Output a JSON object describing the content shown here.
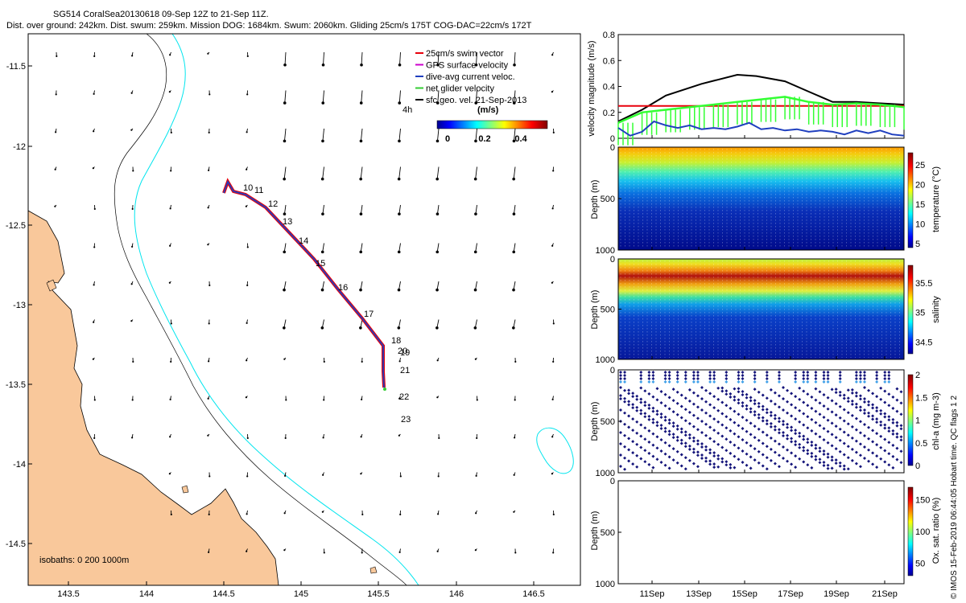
{
  "header": {
    "line1": "SG514 CoralSea20130618 09-Sep 12Z to 21-Sep 11Z.",
    "line2": "Dist. over ground: 242km. Dist. swum: 259km. Mission DOG: 1684km. Swum: 2060km. Gliding 25cm/s 175T COG-DAC=22cm/s 172T"
  },
  "colors": {
    "land": "#f9c89b",
    "isobath_200": "#000000",
    "isobath_1000": "#00e5ee",
    "track_red": "#e8000b",
    "track_blue": "#1f3fbf",
    "vel_black": "#000000",
    "vel_red": "#e8000b",
    "vel_green": "#33ff33",
    "vel_blue": "#1f3fbf"
  },
  "map": {
    "legend": [
      {
        "label": "25cm/s swim vector",
        "color": "#e8000b"
      },
      {
        "label": "GPS surface velocity",
        "color": "#cc00cc"
      },
      {
        "label": "dive-avg current veloc.",
        "color": "#1f3fbf"
      },
      {
        "label": "net glider velocity",
        "color": "#33cc33"
      },
      {
        "label": "sfc geo. vel. 21-Sep-2013",
        "color": "#000000"
      }
    ],
    "time_label": "4h",
    "colorbar": {
      "title": "(m/s)",
      "ticks": [
        "0",
        "0.2",
        "0.4"
      ]
    },
    "isobaths_note": "isobaths: 0   200  1000m",
    "lon_ticks": [
      "143.5",
      "144",
      "144.5",
      "145",
      "145.5",
      "146",
      "146.5"
    ],
    "lat_ticks": [
      "-11.5",
      "-12",
      "-12.5",
      "-13",
      "-13.5",
      "-14",
      "-14.5"
    ],
    "day_labels": [
      "10",
      "11",
      "12",
      "13",
      "14",
      "15",
      "16",
      "17",
      "18",
      "19",
      "20",
      "21",
      "22",
      "23"
    ]
  },
  "chart_data": [
    {
      "type": "line",
      "title": "",
      "ylabel": "velocity magnitude (m/s)",
      "ylim": [
        0,
        0.8
      ],
      "yticks": [
        "0",
        "0.2",
        "0.4",
        "0.6",
        "0.8"
      ],
      "x_range": [
        "09-Sep 12Z",
        "21-Sep 11Z"
      ],
      "series": [
        {
          "name": "net glider velocity",
          "color": "#000000",
          "x": [
            9.5,
            10.5,
            11.5,
            13,
            14.5,
            15.3,
            16.5,
            17.5,
            18.5,
            19.5,
            20.5,
            21.5
          ],
          "values": [
            0.13,
            0.22,
            0.33,
            0.42,
            0.49,
            0.48,
            0.44,
            0.36,
            0.28,
            0.28,
            0.27,
            0.26
          ]
        },
        {
          "name": "swim vector",
          "color": "#e8000b",
          "x": [
            9.5,
            21.5
          ],
          "values": [
            0.25,
            0.25
          ]
        },
        {
          "name": "GPS surface velocity",
          "color": "#33ff33",
          "x": [
            9.5,
            10.5,
            11.5,
            12.5,
            13.5,
            14.5,
            15.5,
            16.5,
            17.5,
            18.5,
            19.5,
            20.5,
            21.5
          ],
          "values": [
            0.12,
            0.2,
            0.22,
            0.24,
            0.26,
            0.28,
            0.3,
            0.32,
            0.28,
            0.26,
            0.27,
            0.26,
            0.24
          ]
        },
        {
          "name": "dive-avg current",
          "color": "#1f3fbf",
          "x": [
            9.5,
            10,
            10.5,
            11,
            11.5,
            12,
            12.5,
            13,
            13.5,
            14,
            14.5,
            15,
            15.5,
            16,
            16.5,
            17,
            17.5,
            18,
            18.5,
            19,
            19.5,
            20,
            20.5,
            21,
            21.5
          ],
          "values": [
            0.08,
            0.02,
            0.05,
            0.13,
            0.1,
            0.08,
            0.1,
            0.07,
            0.08,
            0.07,
            0.09,
            0.12,
            0.07,
            0.08,
            0.06,
            0.07,
            0.05,
            0.06,
            0.05,
            0.03,
            0.06,
            0.04,
            0.06,
            0.03,
            0.02
          ]
        }
      ]
    },
    {
      "type": "heatmap",
      "ylabel": "Depth (m)",
      "cbar_label": "temperature (°C)",
      "yticks": [
        "0",
        "500",
        "1000"
      ],
      "cbar_ticks": [
        "5",
        "10",
        "15",
        "20",
        "25"
      ],
      "cbar_range": [
        4,
        28
      ]
    },
    {
      "type": "heatmap",
      "ylabel": "Depth (m)",
      "cbar_label": "salinity",
      "yticks": [
        "0",
        "500",
        "1000"
      ],
      "cbar_ticks": [
        "34.5",
        "35",
        "35.5"
      ],
      "cbar_range": [
        34.3,
        35.8
      ]
    },
    {
      "type": "scatter",
      "ylabel": "Depth (m)",
      "cbar_label": "chl-a (mg m-3)",
      "yticks": [
        "0",
        "500",
        "1000"
      ],
      "cbar_ticks": [
        "0",
        "0.5",
        "1",
        "1.5",
        "2"
      ],
      "cbar_range": [
        0,
        2
      ]
    },
    {
      "type": "scatter",
      "ylabel": "Depth (m)",
      "cbar_label": "Ox. sat. ratio (%)",
      "yticks": [
        "0",
        "500",
        "1000"
      ],
      "cbar_ticks": [
        "50",
        "100",
        "150"
      ],
      "cbar_range": [
        30,
        170
      ]
    }
  ],
  "time_axis": {
    "ticks": [
      "11Sep",
      "13Sep",
      "15Sep",
      "17Sep",
      "19Sep",
      "21Sep"
    ]
  },
  "side_note": "© IMOS 15-Feb-2019 06:44:05 Hobart time. QC flags 1  2"
}
